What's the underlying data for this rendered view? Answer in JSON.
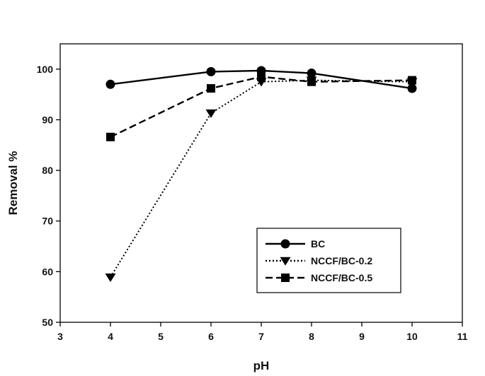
{
  "chart_data": {
    "type": "line",
    "title": "",
    "xlabel": "pH",
    "ylabel": "Removal %",
    "xlim": [
      3,
      11
    ],
    "ylim": [
      50,
      105
    ],
    "xticks": [
      3,
      4,
      5,
      6,
      7,
      8,
      9,
      10,
      11
    ],
    "yticks": [
      50,
      60,
      70,
      80,
      90,
      100
    ],
    "grid": false,
    "legend_position": "lower-right",
    "series": [
      {
        "name": "BC",
        "marker": "circle",
        "line_style": "solid",
        "color": "#000000",
        "x": [
          4,
          6,
          7,
          8,
          10
        ],
        "y": [
          97.0,
          99.5,
          99.7,
          99.2,
          96.2
        ]
      },
      {
        "name": "NCCF/BC-0.2",
        "marker": "triangle-down",
        "line_style": "dotted",
        "color": "#000000",
        "x": [
          4,
          6,
          7,
          8,
          10
        ],
        "y": [
          58.9,
          91.3,
          97.5,
          97.8,
          97.5
        ]
      },
      {
        "name": "NCCF/BC-0.5",
        "marker": "square",
        "line_style": "dashed",
        "color": "#000000",
        "x": [
          4,
          6,
          7,
          8,
          10
        ],
        "y": [
          86.6,
          96.2,
          98.5,
          97.5,
          97.8
        ]
      }
    ]
  }
}
